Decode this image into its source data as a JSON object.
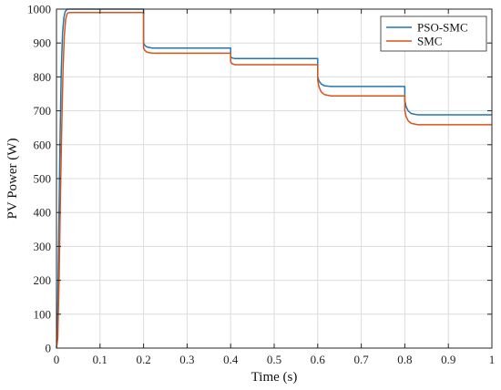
{
  "chart_data": {
    "type": "line",
    "title": "",
    "xlabel": "Time (s)",
    "ylabel": "PV Power (W)",
    "xlim": [
      0,
      1
    ],
    "ylim": [
      0,
      1000
    ],
    "grid": true,
    "legend_position": "top-right",
    "x_ticks": [
      "0",
      "0.1",
      "0.2",
      "0.3",
      "0.4",
      "0.5",
      "0.6",
      "0.7",
      "0.8",
      "0.9",
      "1"
    ],
    "y_ticks": [
      "0",
      "100",
      "200",
      "300",
      "400",
      "500",
      "600",
      "700",
      "800",
      "900",
      "1000"
    ],
    "series": [
      {
        "name": "PSO-SMC",
        "color": "#1f77b4",
        "points": [
          [
            0,
            0
          ],
          [
            0.002,
            40
          ],
          [
            0.005,
            320
          ],
          [
            0.008,
            600
          ],
          [
            0.011,
            820
          ],
          [
            0.014,
            930
          ],
          [
            0.017,
            975
          ],
          [
            0.02,
            993
          ],
          [
            0.025,
            1000
          ],
          [
            0.2,
            1000
          ],
          [
            0.2,
            900
          ],
          [
            0.203,
            893
          ],
          [
            0.208,
            888
          ],
          [
            0.22,
            885
          ],
          [
            0.4,
            885
          ],
          [
            0.4,
            860
          ],
          [
            0.403,
            856
          ],
          [
            0.41,
            854
          ],
          [
            0.6,
            854
          ],
          [
            0.6,
            800
          ],
          [
            0.603,
            788
          ],
          [
            0.608,
            779
          ],
          [
            0.615,
            774
          ],
          [
            0.63,
            772
          ],
          [
            0.8,
            772
          ],
          [
            0.8,
            730
          ],
          [
            0.803,
            712
          ],
          [
            0.808,
            699
          ],
          [
            0.815,
            692
          ],
          [
            0.83,
            688
          ],
          [
            1,
            688
          ]
        ]
      },
      {
        "name": "SMC",
        "color": "#d95319",
        "points": [
          [
            0,
            0
          ],
          [
            0.003,
            30
          ],
          [
            0.006,
            200
          ],
          [
            0.009,
            440
          ],
          [
            0.012,
            650
          ],
          [
            0.015,
            820
          ],
          [
            0.018,
            920
          ],
          [
            0.021,
            970
          ],
          [
            0.025,
            988
          ],
          [
            0.03,
            990
          ],
          [
            0.2,
            990
          ],
          [
            0.2,
            885
          ],
          [
            0.203,
            878
          ],
          [
            0.208,
            873
          ],
          [
            0.22,
            870
          ],
          [
            0.4,
            870
          ],
          [
            0.4,
            845
          ],
          [
            0.403,
            839
          ],
          [
            0.41,
            836
          ],
          [
            0.6,
            836
          ],
          [
            0.6,
            790
          ],
          [
            0.603,
            770
          ],
          [
            0.608,
            756
          ],
          [
            0.615,
            748
          ],
          [
            0.63,
            744
          ],
          [
            0.8,
            744
          ],
          [
            0.8,
            700
          ],
          [
            0.803,
            683
          ],
          [
            0.808,
            670
          ],
          [
            0.815,
            663
          ],
          [
            0.83,
            659
          ],
          [
            1,
            659
          ]
        ]
      }
    ]
  }
}
